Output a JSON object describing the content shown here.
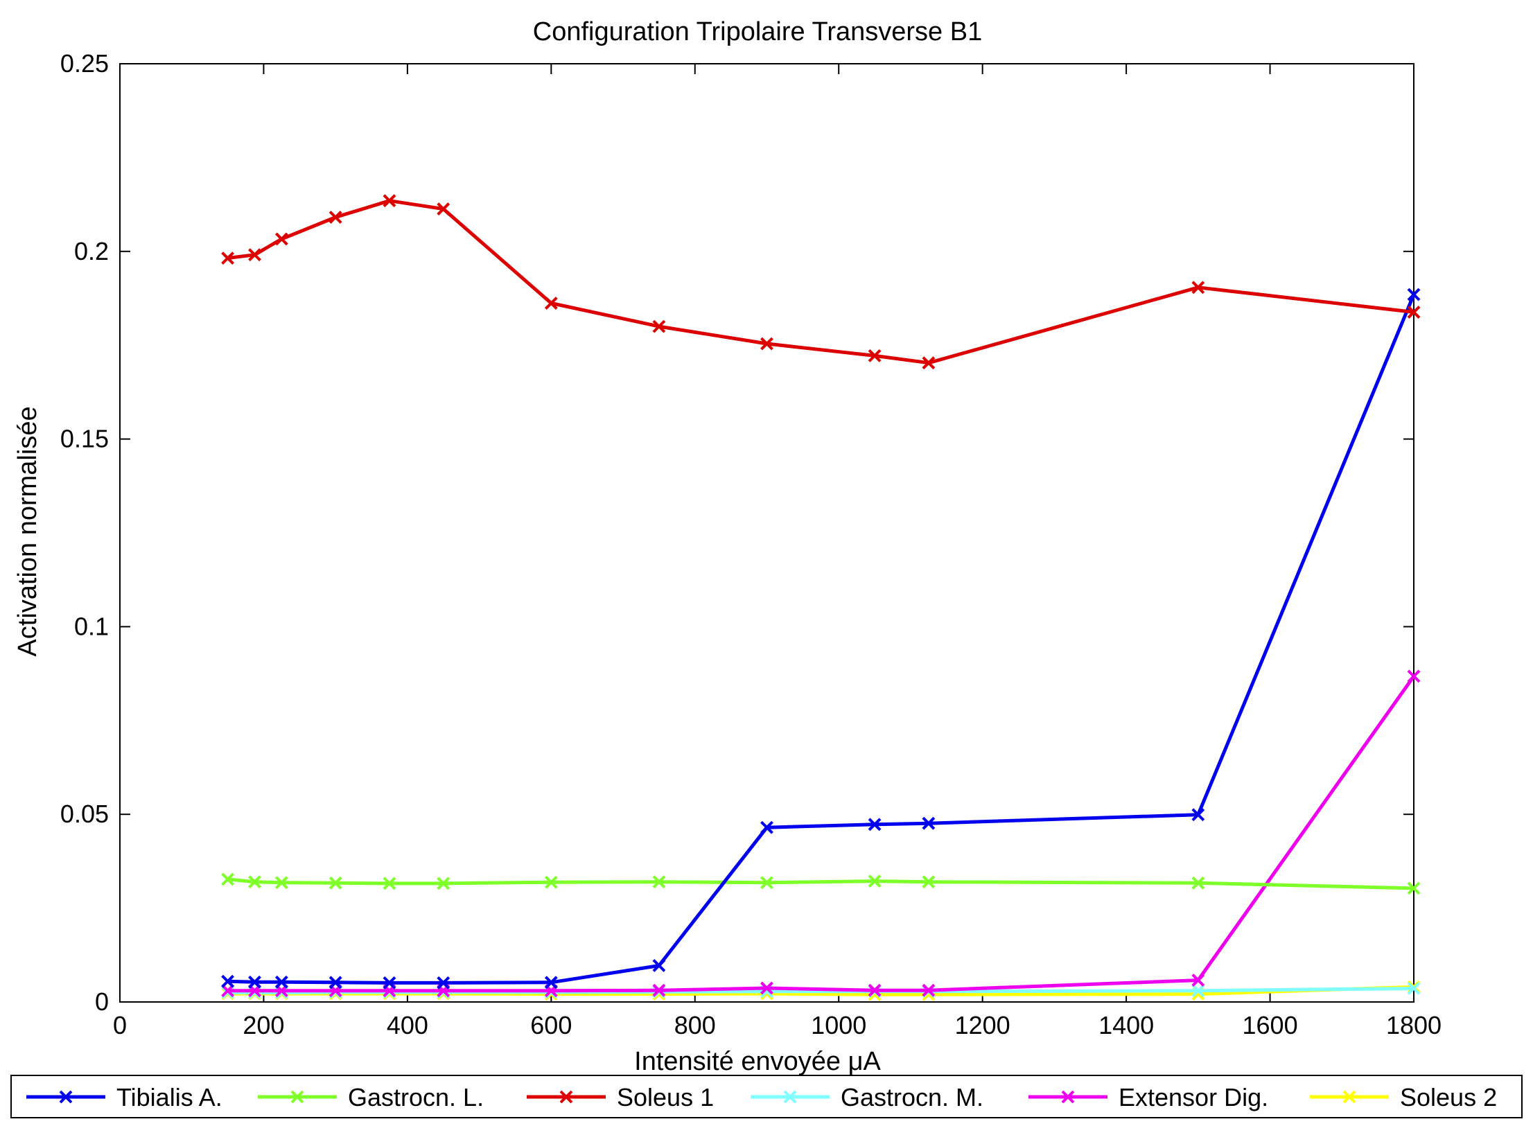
{
  "chart_data": {
    "type": "line",
    "title": "Configuration Tripolaire Transverse B1",
    "xlabel": "Intensité envoyée μA",
    "ylabel": "Activation normalisée",
    "xlim": [
      0,
      1800
    ],
    "ylim": [
      0,
      0.25
    ],
    "xticks": [
      0,
      200,
      400,
      600,
      800,
      1000,
      1200,
      1400,
      1600,
      1800
    ],
    "xtick_labels": [
      "0",
      "200",
      "400",
      "600",
      "800",
      "1000",
      "1200",
      "1400",
      "1600",
      "1800"
    ],
    "yticks": [
      0,
      0.05,
      0.1,
      0.15,
      0.2,
      0.25
    ],
    "ytick_labels": [
      "0",
      "0.05",
      "0.1",
      "0.15",
      "0.2",
      "0.25"
    ],
    "grid": false,
    "legend_position": "bottom",
    "marker": "x",
    "x": [
      150,
      187.5,
      225,
      300,
      375,
      450,
      600,
      750,
      900,
      1050,
      1125,
      1500,
      1800
    ],
    "series": [
      {
        "name": "Tibialis A.",
        "color": "#0000ee",
        "values": [
          0.0055,
          0.0053,
          0.0053,
          0.0052,
          0.0051,
          0.0051,
          0.0052,
          0.0097,
          0.0465,
          0.0473,
          0.0476,
          0.0499,
          0.1885
        ]
      },
      {
        "name": "Gastrocn. L.",
        "color": "#7fff2a",
        "values": [
          0.0327,
          0.032,
          0.0318,
          0.0317,
          0.0316,
          0.0316,
          0.0319,
          0.032,
          0.0318,
          0.0322,
          0.032,
          0.0317,
          0.0303
        ]
      },
      {
        "name": "Soleus 1",
        "color": "#dd0000",
        "values": [
          0.1982,
          0.1991,
          0.2033,
          0.2091,
          0.2135,
          0.2113,
          0.1862,
          0.18,
          0.1754,
          0.1722,
          0.1703,
          0.1904,
          0.1838
        ]
      },
      {
        "name": "Gastrocn. M.",
        "color": "#7fffff",
        "values": [
          0.0025,
          0.0025,
          0.0025,
          0.0026,
          0.0026,
          0.0026,
          0.0026,
          0.0027,
          0.0028,
          0.0028,
          0.0028,
          0.003,
          0.0036
        ]
      },
      {
        "name": "Extensor Dig.",
        "color": "#ee00ee",
        "values": [
          0.003,
          0.003,
          0.003,
          0.003,
          0.003,
          0.003,
          0.003,
          0.0031,
          0.0037,
          0.0031,
          0.0031,
          0.0058,
          0.0868
        ]
      },
      {
        "name": "Soleus 2",
        "color": "#ffff00",
        "values": [
          0.0022,
          0.0022,
          0.0022,
          0.0022,
          0.0022,
          0.0022,
          0.0021,
          0.0021,
          0.0022,
          0.002,
          0.002,
          0.0021,
          0.004
        ]
      }
    ]
  }
}
